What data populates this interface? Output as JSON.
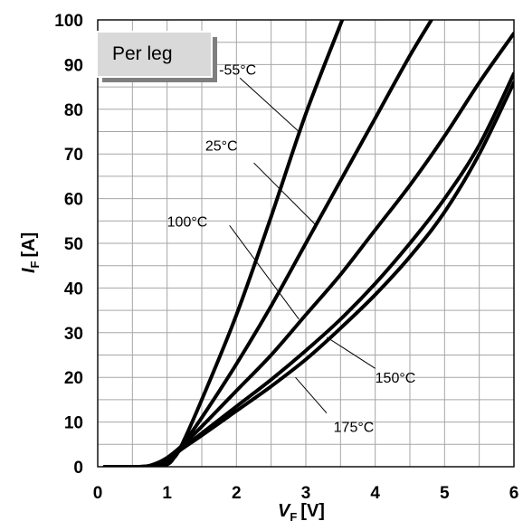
{
  "chart_data": {
    "type": "line",
    "title": "",
    "box_label": "Per leg",
    "xlabel": {
      "symbol": "V",
      "subscript": "F",
      "unit": "[V]"
    },
    "ylabel": {
      "symbol": "I",
      "subscript": "F",
      "unit": "[A]"
    },
    "xlim": [
      0,
      6
    ],
    "ylim": [
      0,
      100
    ],
    "x_ticks": [
      "0",
      "1",
      "2",
      "3",
      "4",
      "5",
      "6"
    ],
    "y_ticks": [
      "0",
      "10",
      "20",
      "30",
      "40",
      "50",
      "60",
      "70",
      "80",
      "90",
      "100"
    ],
    "grid": {
      "x_step": 0.5,
      "y_step": 5
    },
    "series": [
      {
        "name": "-55°C",
        "x": [
          0.1,
          0.8,
          1.0,
          1.1,
          1.2,
          1.5,
          2.0,
          2.5,
          3.0,
          3.5,
          3.55
        ],
        "y": [
          0,
          0,
          0.5,
          2,
          4.5,
          15,
          34,
          56,
          79,
          99,
          101
        ]
      },
      {
        "name": "25°C",
        "x": [
          0.1,
          0.7,
          0.9,
          1.0,
          1.1,
          1.2,
          1.5,
          2.0,
          2.5,
          3.0,
          3.5,
          4.0,
          4.5,
          4.85
        ],
        "y": [
          0,
          0,
          0.5,
          1.5,
          2.8,
          4.5,
          11,
          23,
          36,
          50,
          64,
          78,
          92,
          101
        ]
      },
      {
        "name": "100°C",
        "x": [
          0.1,
          0.6,
          0.8,
          1.0,
          1.2,
          1.5,
          2.0,
          2.5,
          3.0,
          3.5,
          4.0,
          4.5,
          5.0,
          5.5,
          6.0
        ],
        "y": [
          0,
          0,
          0.5,
          2,
          4.5,
          9,
          17,
          25,
          34,
          43,
          53,
          63,
          74,
          86,
          97
        ]
      },
      {
        "name": "150°C",
        "x": [
          0.1,
          0.6,
          0.8,
          1.0,
          1.2,
          1.5,
          2.0,
          2.5,
          3.0,
          3.5,
          4.0,
          4.5,
          5.0,
          5.5,
          6.0
        ],
        "y": [
          0,
          0,
          0.3,
          1.5,
          4.0,
          7.5,
          13.5,
          19.5,
          26,
          33,
          41,
          50,
          60,
          72,
          88
        ]
      },
      {
        "name": "175°C",
        "x": [
          0.1,
          0.6,
          0.8,
          1.0,
          1.2,
          1.5,
          2.0,
          2.5,
          3.0,
          3.5,
          4.0,
          4.5,
          5.0,
          5.5,
          6.0
        ],
        "y": [
          0,
          0,
          0.2,
          1.2,
          3.8,
          7.0,
          12.5,
          18,
          24,
          31,
          38.5,
          47,
          57,
          70,
          86
        ]
      }
    ],
    "annotations": [
      {
        "text": "-55°C",
        "label_at": [
          1.75,
          89
        ],
        "line_from": [
          2.05,
          87
        ],
        "line_to": [
          2.9,
          75
        ]
      },
      {
        "text": "25°C",
        "label_at": [
          1.55,
          72
        ],
        "line_from": [
          2.25,
          68
        ],
        "line_to": [
          3.15,
          54
        ]
      },
      {
        "text": "100°C",
        "label_at": [
          1.0,
          55
        ],
        "line_from": [
          1.9,
          54
        ],
        "line_to": [
          2.9,
          33
        ]
      },
      {
        "text": "150°C",
        "label_at": [
          4.0,
          20
        ],
        "line_from": [
          4.0,
          22
        ],
        "line_to": [
          3.3,
          29
        ]
      },
      {
        "text": "175°C",
        "label_at": [
          3.4,
          9
        ],
        "line_from": [
          3.3,
          12
        ],
        "line_to": [
          2.85,
          20
        ]
      }
    ]
  }
}
